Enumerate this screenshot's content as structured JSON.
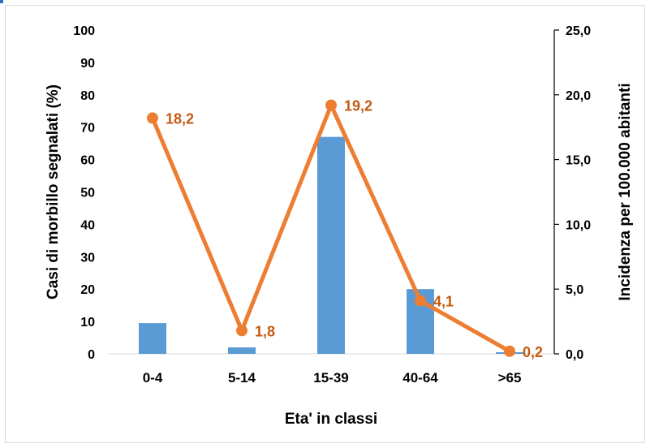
{
  "chart_data": {
    "type": "bar+line",
    "categories": [
      "0-4",
      "5-14",
      "15-39",
      "40-64",
      ">65"
    ],
    "series": [
      {
        "type": "bar",
        "axis": "left",
        "color": "#5b9bd5",
        "values": [
          9.5,
          2,
          67,
          20,
          0.5
        ]
      },
      {
        "type": "line",
        "axis": "right",
        "color": "#ed7d31",
        "values": [
          18.2,
          1.8,
          19.2,
          4.1,
          0.2
        ],
        "data_labels": [
          "18,2",
          "1,8",
          "19,2",
          "4,1",
          "0,2"
        ]
      }
    ],
    "xlabel": "Eta' in classi",
    "ylabel": "Casi di morbillo segnalati (%)",
    "y2label": "Incidenza per 100.000 abitanti",
    "ylim": [
      0,
      100
    ],
    "y2lim": [
      0,
      25
    ],
    "yticks": [
      "0",
      "10",
      "20",
      "30",
      "40",
      "50",
      "60",
      "70",
      "80",
      "90",
      "100"
    ],
    "y2ticks": [
      "0,0",
      "5,0",
      "10,0",
      "15,0",
      "20,0",
      "25,0"
    ],
    "grid": false,
    "legend": "none"
  }
}
